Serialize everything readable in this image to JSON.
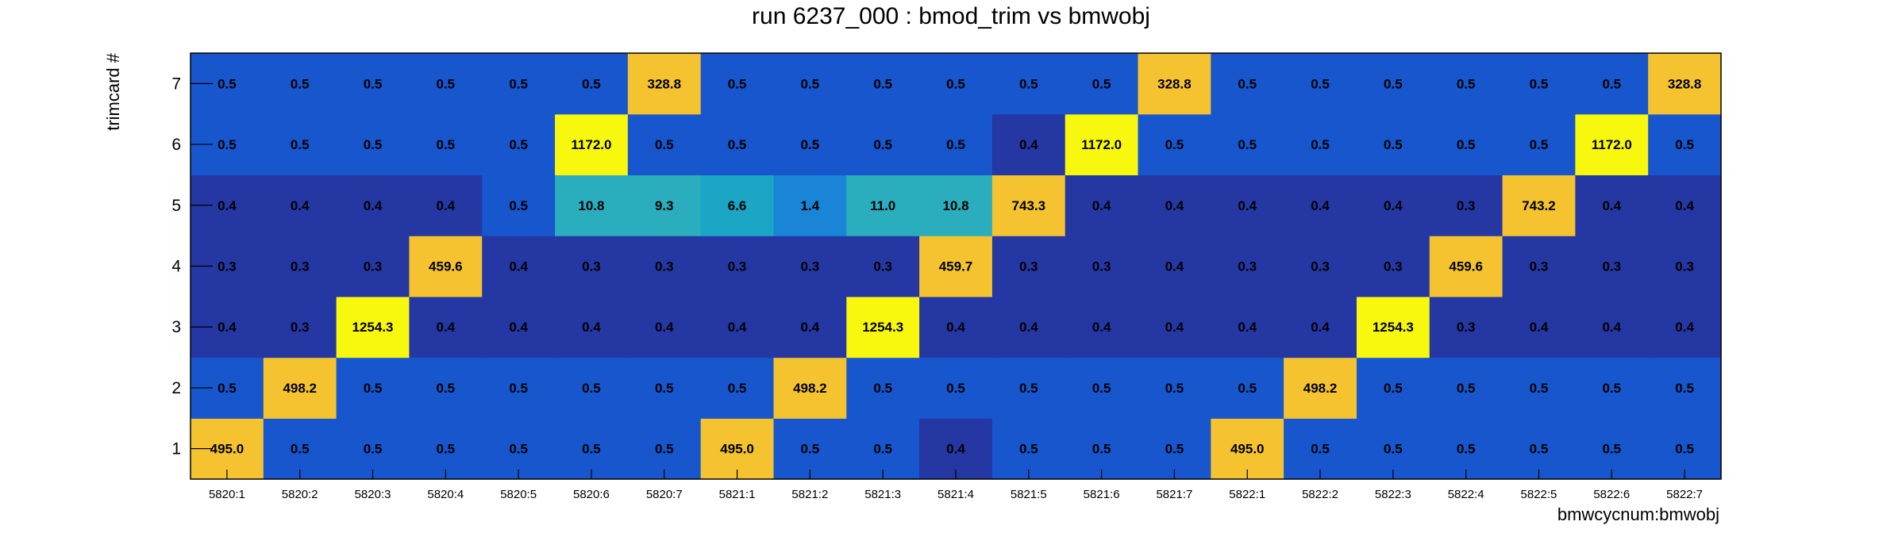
{
  "chart_data": {
    "type": "heatmap",
    "title": "run 6237_000 : bmod_trim vs bmwobj",
    "xlabel": "bmwcycnum:bmwobj",
    "ylabel": "trimcard #",
    "x_categories": [
      "5820:1",
      "5820:2",
      "5820:3",
      "5820:4",
      "5820:5",
      "5820:6",
      "5820:7",
      "5821:1",
      "5821:2",
      "5821:3",
      "5821:4",
      "5821:5",
      "5821:6",
      "5821:7",
      "5822:1",
      "5822:2",
      "5822:3",
      "5822:4",
      "5822:5",
      "5822:6",
      "5822:7"
    ],
    "y_categories": [
      "1",
      "2",
      "3",
      "4",
      "5",
      "6",
      "7"
    ],
    "values": [
      [
        "495.0",
        "0.5",
        "0.5",
        "0.5",
        "0.5",
        "0.5",
        "0.5",
        "495.0",
        "0.5",
        "0.5",
        "0.4",
        "0.5",
        "0.5",
        "0.5",
        "495.0",
        "0.5",
        "0.5",
        "0.5",
        "0.5",
        "0.5",
        "0.5"
      ],
      [
        "0.5",
        "498.2",
        "0.5",
        "0.5",
        "0.5",
        "0.5",
        "0.5",
        "0.5",
        "498.2",
        "0.5",
        "0.5",
        "0.5",
        "0.5",
        "0.5",
        "0.5",
        "498.2",
        "0.5",
        "0.5",
        "0.5",
        "0.5",
        "0.5"
      ],
      [
        "0.4",
        "0.3",
        "1254.3",
        "0.4",
        "0.4",
        "0.4",
        "0.4",
        "0.4",
        "0.4",
        "1254.3",
        "0.4",
        "0.4",
        "0.4",
        "0.4",
        "0.4",
        "0.4",
        "1254.3",
        "0.3",
        "0.4",
        "0.4",
        "0.4"
      ],
      [
        "0.3",
        "0.3",
        "0.3",
        "459.6",
        "0.4",
        "0.3",
        "0.3",
        "0.3",
        "0.3",
        "0.3",
        "459.7",
        "0.3",
        "0.3",
        "0.4",
        "0.3",
        "0.3",
        "0.3",
        "459.6",
        "0.3",
        "0.3",
        "0.3"
      ],
      [
        "0.4",
        "0.4",
        "0.4",
        "0.4",
        "0.5",
        "10.8",
        "9.3",
        "6.6",
        "1.4",
        "11.0",
        "10.8",
        "743.3",
        "0.4",
        "0.4",
        "0.4",
        "0.4",
        "0.4",
        "0.3",
        "743.2",
        "0.4",
        "0.4"
      ],
      [
        "0.5",
        "0.5",
        "0.5",
        "0.5",
        "0.5",
        "1172.0",
        "0.5",
        "0.5",
        "0.5",
        "0.5",
        "0.5",
        "0.4",
        "1172.0",
        "0.5",
        "0.5",
        "0.5",
        "0.5",
        "0.5",
        "0.5",
        "1172.0",
        "0.5"
      ],
      [
        "0.5",
        "0.5",
        "0.5",
        "0.5",
        "0.5",
        "0.5",
        "328.8",
        "0.5",
        "0.5",
        "0.5",
        "0.5",
        "0.5",
        "0.5",
        "328.8",
        "0.5",
        "0.5",
        "0.5",
        "0.5",
        "0.5",
        "0.5",
        "328.8"
      ]
    ],
    "color_map": {
      "low_a": "#2437a3",
      "low_b": "#1756cc",
      "mid_low": "#1a84d6",
      "mid_teal": "#2aaebd",
      "mid_cyan": "#1ba6c6",
      "high": "#f5c330",
      "max": "#f8f80f"
    },
    "grid": false,
    "legend": "none"
  }
}
